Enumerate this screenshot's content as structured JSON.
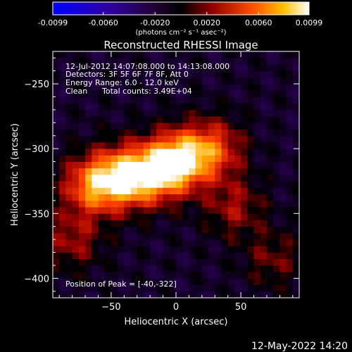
{
  "colorbar": {
    "ticks": [
      "-0.0099",
      "-0.0060",
      "-0.0020",
      "0.0020",
      "0.0060",
      "0.0099"
    ],
    "tick_values": [
      -0.0099,
      -0.006,
      -0.002,
      0.002,
      0.006,
      0.0099
    ],
    "range": [
      -0.0099,
      0.0099
    ],
    "unit_label": "(photons cm⁻² s⁻¹ asec⁻²)"
  },
  "chart_data": {
    "type": "heatmap",
    "title": "Reconstructed RHESSI Image",
    "xlabel": "Heliocentric X (arcsec)",
    "ylabel": "Heliocentric Y (arcsec)",
    "xlim": [
      -95,
      95
    ],
    "ylim": [
      -415,
      -225
    ],
    "x_ticks": [
      -50,
      0,
      50
    ],
    "y_ticks": [
      -250,
      -300,
      -350,
      -400
    ],
    "colormap": [
      "#0000ff",
      "#400080",
      "#000000",
      "#a00000",
      "#ff4000",
      "#ffb000",
      "#ffffff"
    ],
    "sources": [
      {
        "x": -40,
        "y": -322,
        "flux": 0.0099
      },
      {
        "x": 5,
        "y": -308,
        "flux": 0.0095
      },
      {
        "x": -15,
        "y": -318,
        "flux": 0.0085
      },
      {
        "x": -65,
        "y": -328,
        "flux": 0.008
      },
      {
        "x": 30,
        "y": -300,
        "flux": 0.006
      },
      {
        "x": 45,
        "y": -345,
        "flux": 0.004
      },
      {
        "x": -80,
        "y": -370,
        "flux": 0.004
      },
      {
        "x": 75,
        "y": -385,
        "flux": 0.003
      }
    ],
    "annotations": {
      "time_range": "12-Jul-2012 14:07:08.000 to 14:13:08.000",
      "detectors": "Detectors: 3F 5F 6F 7F 8F, Att 0",
      "energy": "Energy Range: 6.0 - 12.0 keV",
      "method": "Clean",
      "counts": "Total counts: 3.49E+04",
      "peak": "Position of Peak = [-40,-322]"
    }
  },
  "footer": {
    "datetime": "12-May-2022 14:20"
  }
}
